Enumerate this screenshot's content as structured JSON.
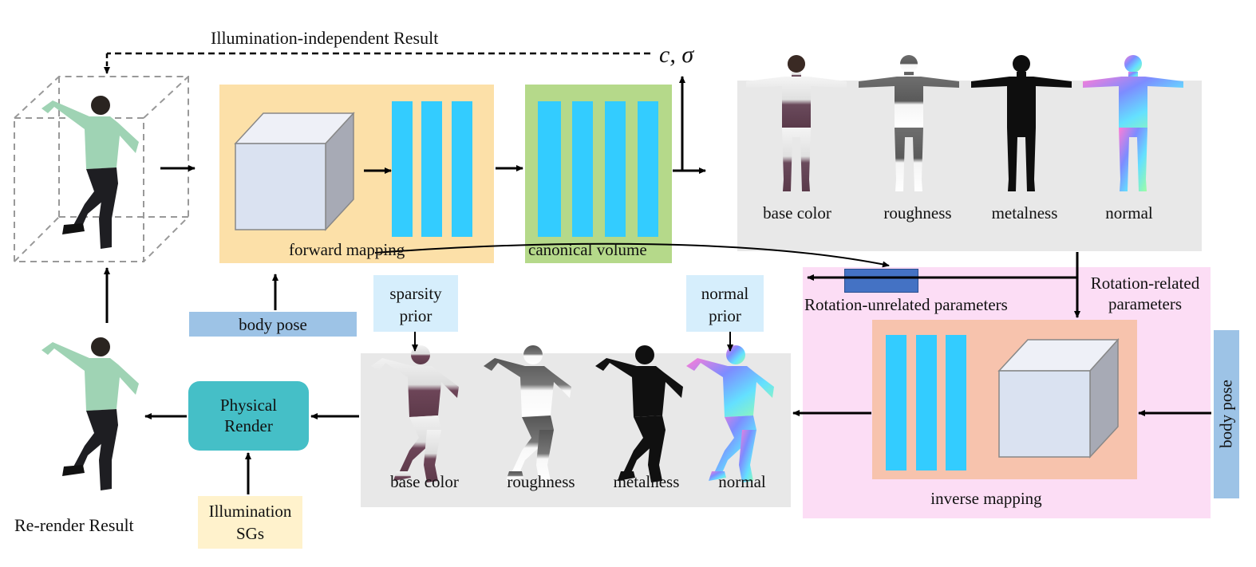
{
  "top_label": "Illumination-independent Result",
  "output_symbols": "c, σ",
  "forward_mapping": "forward mapping",
  "canonical_volume": "canonical volume",
  "body_pose_top": "body pose",
  "sparsity_prior": [
    "sparsity",
    "prior"
  ],
  "normal_prior": [
    "normal",
    "prior"
  ],
  "top_materials": [
    "base color",
    "roughness",
    "metalness",
    "normal"
  ],
  "bottom_materials": [
    "base color",
    "roughness",
    "metalness",
    "normal"
  ],
  "rotation_unrelated": "Rotation-unrelated parameters",
  "rotation_related": [
    "Rotation-related",
    "parameters"
  ],
  "inverse_mapping": "inverse mapping",
  "body_pose_right": "body pose",
  "physical_render": [
    "Physical",
    "Render"
  ],
  "illumination": [
    "Illumination",
    "SGs"
  ],
  "rerender_result": "Re-render Result",
  "colors": {
    "orange_panel": "#fce0a8",
    "green_panel": "#b5d98a",
    "gray_panel": "#e8e8e8",
    "pink_panel": "#fcddf5",
    "salmon_panel": "#f7c3ad",
    "cyan_bar": "#33ccff",
    "blue_pose": "#9dc3e6",
    "light_blue": "#d6eefc",
    "teal": "#45bfc7",
    "dark_blue": "#4472c4",
    "cream": "#fff2cc"
  }
}
